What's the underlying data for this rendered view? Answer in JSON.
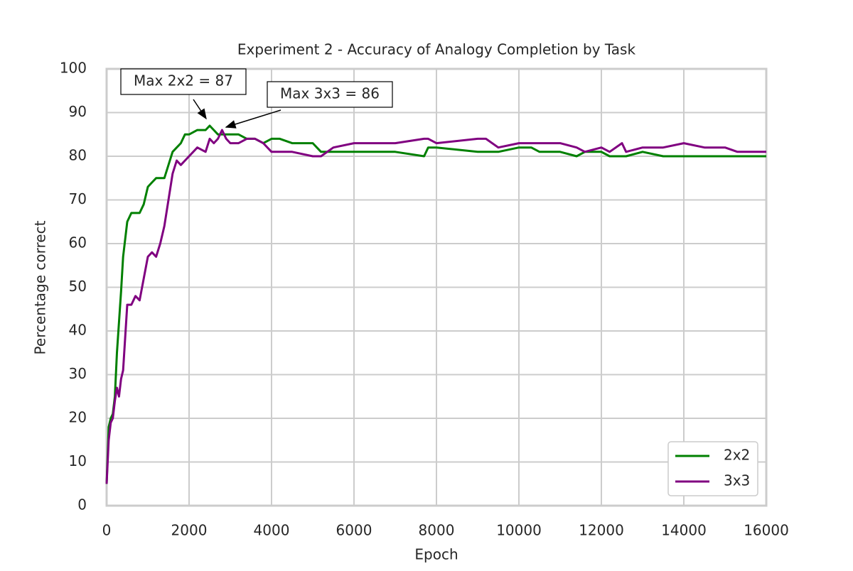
{
  "chart_data": {
    "type": "line",
    "title": "Experiment 2 - Accuracy of Analogy Completion by Task",
    "x_label": "Epoch",
    "y_label": "Percentage correct",
    "x": [
      0,
      50,
      100,
      150,
      200,
      250,
      300,
      350,
      400,
      500,
      600,
      700,
      800,
      900,
      1000,
      1100,
      1200,
      1300,
      1400,
      1500,
      1600,
      1700,
      1800,
      1900,
      2000,
      2200,
      2400,
      2500,
      2600,
      2700,
      2800,
      2900,
      3000,
      3200,
      3400,
      3600,
      3800,
      4000,
      4200,
      4500,
      5000,
      5200,
      5500,
      6000,
      7000,
      7700,
      7800,
      8000,
      9000,
      9200,
      9500,
      10000,
      10300,
      10500,
      11000,
      11400,
      11600,
      12000,
      12200,
      12500,
      12600,
      13000,
      13500,
      14000,
      14500,
      15000,
      15300,
      16000
    ],
    "series": [
      {
        "name": "2x2",
        "color": "#008000",
        "values": [
          5,
          18,
          20,
          21,
          25,
          35,
          42,
          49,
          57,
          65,
          67,
          67,
          67,
          69,
          73,
          74,
          75,
          75,
          75,
          78,
          81,
          82,
          83,
          85,
          85,
          86,
          86,
          87,
          86,
          85,
          85,
          85,
          85,
          85,
          84,
          84,
          83,
          84,
          84,
          83,
          83,
          81,
          81,
          81,
          81,
          80,
          82,
          82,
          81,
          81,
          81,
          82,
          82,
          81,
          81,
          80,
          81,
          81,
          80,
          80,
          80,
          81,
          80,
          80,
          80,
          80,
          80,
          80
        ]
      },
      {
        "name": "3x3",
        "color": "#800080",
        "values": [
          5,
          15,
          19,
          20,
          24,
          27,
          25,
          29,
          31,
          46,
          46,
          48,
          47,
          52,
          57,
          58,
          57,
          60,
          64,
          70,
          76,
          79,
          78,
          79,
          80,
          82,
          81,
          84,
          83,
          84,
          86,
          84,
          83,
          83,
          84,
          84,
          83,
          81,
          81,
          81,
          80,
          80,
          82,
          83,
          83,
          84,
          84,
          83,
          84,
          84,
          82,
          83,
          83,
          83,
          83,
          82,
          81,
          82,
          81,
          83,
          81,
          82,
          82,
          83,
          82,
          82,
          81,
          81
        ]
      }
    ],
    "annotations": [
      "Max 2x2 = 87",
      "Max 3x3 = 86"
    ],
    "xlim": [
      0,
      16000
    ],
    "xticks": [
      0,
      2000,
      4000,
      6000,
      8000,
      10000,
      12000,
      14000,
      16000
    ],
    "ylim": [
      0,
      100
    ],
    "yticks": [
      0,
      10,
      20,
      30,
      40,
      50,
      60,
      70,
      80,
      90,
      100
    ],
    "grid": true,
    "legend": "lower right"
  }
}
